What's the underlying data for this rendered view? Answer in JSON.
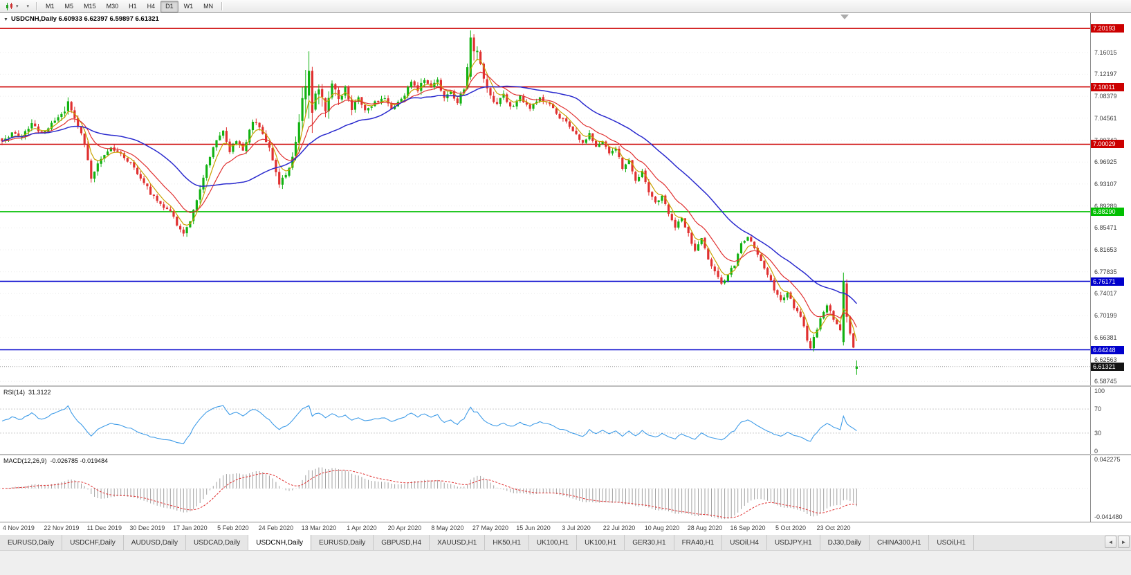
{
  "icons": {
    "caret": "▾",
    "collapse": "▼",
    "tab_left": "◄",
    "tab_right": "►"
  },
  "toolbar": {
    "timeframes": [
      "M1",
      "M5",
      "M15",
      "M30",
      "H1",
      "H4",
      "D1",
      "W1",
      "MN"
    ],
    "active_timeframe": "D1"
  },
  "chart_data": {
    "type": "candlestick",
    "symbol": "USDCNH",
    "timeframe": "Daily",
    "title_line": "USDCNH,Daily 6.60933 6.62397 6.59897 6.61321",
    "ohlc": {
      "open": 6.60933,
      "high": 6.62397,
      "low": 6.59897,
      "close": 6.61321
    },
    "candle_up_color": "#12b212",
    "candle_down_color": "#e03030",
    "y_axis": {
      "price_max": 7.2285,
      "price_min": 6.5805,
      "ticks": [
        "7.16015",
        "7.12197",
        "7.08379",
        "7.04561",
        "7.00743",
        "6.96925",
        "6.93107",
        "6.89289",
        "6.85471",
        "6.81653",
        "6.77835",
        "6.74017",
        "6.70199",
        "6.66381",
        "6.62563",
        "6.58745"
      ]
    },
    "hlines": [
      {
        "value": 7.20193,
        "label": "7.20193",
        "color": "#cc0000"
      },
      {
        "value": 7.10011,
        "label": "7.10011",
        "color": "#cc0000"
      },
      {
        "value": 7.00029,
        "label": "7.00029",
        "color": "#cc0000"
      },
      {
        "value": 6.8829,
        "label": "6.88290",
        "color": "#00bf00"
      },
      {
        "value": 6.76171,
        "label": "6.76171",
        "color": "#0000cc"
      },
      {
        "value": 6.64248,
        "label": "6.64248",
        "color": "#0000cc"
      }
    ],
    "current_price": {
      "value": 6.61321,
      "label": "6.61321",
      "badge_color": "#141414"
    },
    "x_labels": [
      "4 Nov 2019",
      "22 Nov 2019",
      "11 Dec 2019",
      "30 Dec 2019",
      "17 Jan 2020",
      "5 Feb 2020",
      "24 Feb 2020",
      "13 Mar 2020",
      "1 Apr 2020",
      "20 Apr 2020",
      "8 May 2020",
      "27 May 2020",
      "15 Jun 2020",
      "3 Jul 2020",
      "22 Jul 2020",
      "10 Aug 2020",
      "28 Aug 2020",
      "16 Sep 2020",
      "5 Oct 2020",
      "23 Oct 2020"
    ],
    "num_candles": 260,
    "ma_lines": [
      {
        "name": "fast",
        "period": 5,
        "method": "ema",
        "color": "#c8a200"
      },
      {
        "name": "mid",
        "period": 13,
        "method": "ema",
        "color": "#e03030"
      },
      {
        "name": "slow",
        "period": 34,
        "method": "sma",
        "color": "#2a2ace"
      }
    ],
    "price_waypoints": [
      [
        0,
        7.003,
        0.016
      ],
      [
        3,
        7.022,
        0.016
      ],
      [
        6,
        7.012,
        0.015
      ],
      [
        9,
        7.035,
        0.016
      ],
      [
        12,
        7.018,
        0.014
      ],
      [
        15,
        7.038,
        0.015
      ],
      [
        18,
        7.052,
        0.018
      ],
      [
        20,
        7.072,
        0.022
      ],
      [
        22,
        7.048,
        0.016
      ],
      [
        25,
        7.002,
        0.016
      ],
      [
        27,
        6.944,
        0.026
      ],
      [
        30,
        6.972,
        0.015
      ],
      [
        33,
        6.992,
        0.012
      ],
      [
        36,
        6.985,
        0.012
      ],
      [
        39,
        6.967,
        0.013
      ],
      [
        42,
        6.943,
        0.014
      ],
      [
        45,
        6.915,
        0.014
      ],
      [
        48,
        6.895,
        0.013
      ],
      [
        51,
        6.885,
        0.012
      ],
      [
        53,
        6.858,
        0.015
      ],
      [
        55,
        6.845,
        0.018
      ],
      [
        57,
        6.868,
        0.015
      ],
      [
        59,
        6.905,
        0.016
      ],
      [
        62,
        6.962,
        0.02
      ],
      [
        65,
        7.008,
        0.018
      ],
      [
        67,
        7.022,
        0.015
      ],
      [
        69,
        6.988,
        0.014
      ],
      [
        71,
        7.005,
        0.013
      ],
      [
        73,
        6.988,
        0.013
      ],
      [
        76,
        7.042,
        0.016
      ],
      [
        78,
        7.028,
        0.014
      ],
      [
        81,
        6.995,
        0.015
      ],
      [
        84,
        6.935,
        0.02
      ],
      [
        86,
        6.948,
        0.018
      ],
      [
        88,
        6.975,
        0.024
      ],
      [
        90,
        7.03,
        0.04
      ],
      [
        92,
        7.11,
        0.065
      ],
      [
        93,
        7.13,
        0.07
      ],
      [
        94,
        7.06,
        0.055
      ],
      [
        96,
        7.102,
        0.042
      ],
      [
        98,
        7.065,
        0.034
      ],
      [
        100,
        7.105,
        0.028
      ],
      [
        102,
        7.08,
        0.024
      ],
      [
        104,
        7.098,
        0.02
      ],
      [
        106,
        7.06,
        0.02
      ],
      [
        108,
        7.082,
        0.016
      ],
      [
        110,
        7.057,
        0.014
      ],
      [
        113,
        7.072,
        0.013
      ],
      [
        116,
        7.083,
        0.013
      ],
      [
        118,
        7.064,
        0.012
      ],
      [
        121,
        7.078,
        0.013
      ],
      [
        124,
        7.106,
        0.016
      ],
      [
        126,
        7.094,
        0.02
      ],
      [
        128,
        7.116,
        0.016
      ],
      [
        130,
        7.099,
        0.014
      ],
      [
        132,
        7.11,
        0.013
      ],
      [
        134,
        7.08,
        0.014
      ],
      [
        136,
        7.094,
        0.013
      ],
      [
        138,
        7.07,
        0.014
      ],
      [
        140,
        7.1,
        0.02
      ],
      [
        142,
        7.175,
        0.03
      ],
      [
        144,
        7.16,
        0.032
      ],
      [
        146,
        7.11,
        0.026
      ],
      [
        148,
        7.082,
        0.02
      ],
      [
        150,
        7.067,
        0.016
      ],
      [
        152,
        7.089,
        0.014
      ],
      [
        154,
        7.064,
        0.014
      ],
      [
        157,
        7.082,
        0.013
      ],
      [
        160,
        7.062,
        0.012
      ],
      [
        163,
        7.082,
        0.012
      ],
      [
        166,
        7.068,
        0.012
      ],
      [
        169,
        7.048,
        0.013
      ],
      [
        173,
        7.026,
        0.013
      ],
      [
        176,
        7.004,
        0.014
      ],
      [
        178,
        7.018,
        0.012
      ],
      [
        180,
        6.994,
        0.012
      ],
      [
        182,
        7.008,
        0.012
      ],
      [
        184,
        6.984,
        0.012
      ],
      [
        186,
        6.994,
        0.012
      ],
      [
        188,
        6.958,
        0.014
      ],
      [
        190,
        6.972,
        0.012
      ],
      [
        192,
        6.938,
        0.014
      ],
      [
        194,
        6.952,
        0.012
      ],
      [
        196,
        6.918,
        0.014
      ],
      [
        198,
        6.898,
        0.013
      ],
      [
        200,
        6.912,
        0.012
      ],
      [
        202,
        6.878,
        0.014
      ],
      [
        204,
        6.858,
        0.014
      ],
      [
        206,
        6.872,
        0.012
      ],
      [
        208,
        6.842,
        0.014
      ],
      [
        210,
        6.818,
        0.015
      ],
      [
        212,
        6.838,
        0.013
      ],
      [
        214,
        6.798,
        0.015
      ],
      [
        216,
        6.778,
        0.014
      ],
      [
        218,
        6.758,
        0.015
      ],
      [
        220,
        6.772,
        0.013
      ],
      [
        222,
        6.792,
        0.013
      ],
      [
        224,
        6.828,
        0.014
      ],
      [
        226,
        6.842,
        0.013
      ],
      [
        228,
        6.818,
        0.013
      ],
      [
        230,
        6.798,
        0.013
      ],
      [
        232,
        6.772,
        0.014
      ],
      [
        234,
        6.748,
        0.014
      ],
      [
        236,
        6.728,
        0.014
      ],
      [
        238,
        6.742,
        0.012
      ],
      [
        240,
        6.718,
        0.013
      ],
      [
        242,
        6.698,
        0.014
      ],
      [
        244,
        6.662,
        0.016
      ],
      [
        245,
        6.648,
        0.018
      ],
      [
        246,
        6.662,
        0.014
      ],
      [
        248,
        6.698,
        0.014
      ],
      [
        250,
        6.722,
        0.013
      ],
      [
        252,
        6.698,
        0.013
      ],
      [
        254,
        6.678,
        0.013
      ],
      [
        255,
        6.758,
        0.004
      ],
      [
        256,
        6.698,
        0.02
      ],
      [
        257,
        6.672,
        0.016
      ],
      [
        258,
        6.645,
        0.014
      ],
      [
        259,
        6.613,
        0.004
      ]
    ],
    "candle_overrides": {
      "93": [
        7.085,
        7.162,
        7.045,
        7.128
      ],
      "94": [
        7.128,
        7.135,
        7.02,
        7.055
      ],
      "142": [
        7.118,
        7.1985,
        7.112,
        7.186
      ],
      "143": [
        7.186,
        7.192,
        7.146,
        7.162
      ],
      "255": [
        6.656,
        6.777,
        6.65,
        6.762
      ],
      "256": [
        6.758,
        6.765,
        6.69,
        6.7
      ],
      "259": [
        6.60933,
        6.62397,
        6.59897,
        6.61321
      ]
    }
  },
  "rsi_panel": {
    "label": "RSI(14)",
    "value": "31.3122",
    "period": 14,
    "levels": [
      "100",
      "70",
      "30",
      "0"
    ],
    "line_color": "#3f9ce8"
  },
  "macd_panel": {
    "label": "MACD(12,26,9)",
    "value_line": "-0.026785 -0.019484",
    "fast": 12,
    "slow": 26,
    "signal": 9,
    "axis_top": "0.042275",
    "axis_bottom": "-0.041480",
    "bar_color": "#a0a0a0",
    "signal_color": "#e03030"
  },
  "tabs": {
    "items": [
      "EURUSD,Daily",
      "USDCHF,Daily",
      "AUDUSD,Daily",
      "USDCAD,Daily",
      "USDCNH,Daily",
      "EURUSD,Daily",
      "GBPUSD,H4",
      "XAUUSD,H1",
      "HK50,H1",
      "UK100,H1",
      "UK100,H1",
      "GER30,H1",
      "FRA40,H1",
      "USOil,H4",
      "USDJPY,H1",
      "DJ30,Daily",
      "CHINA300,H1",
      "USOil,H1"
    ],
    "active_index": 4
  }
}
